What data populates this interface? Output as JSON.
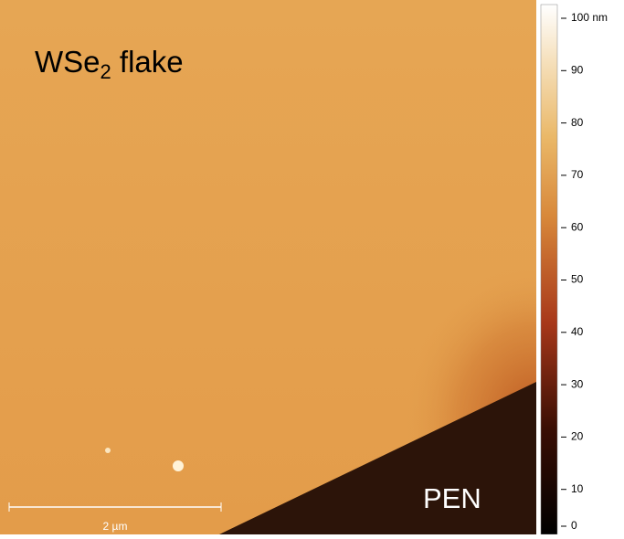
{
  "image": {
    "label_main": "WSe",
    "label_sub": "2",
    "label_rest": " flake",
    "substrate_label": "PEN",
    "scale_bar_label": "2 µm"
  },
  "colorbar": {
    "range": [
      0,
      100
    ],
    "ticks": [
      0,
      10,
      20,
      30,
      40,
      50,
      60,
      70,
      80,
      90,
      {
        "value": 100,
        "label": "100 nm"
      }
    ]
  }
}
